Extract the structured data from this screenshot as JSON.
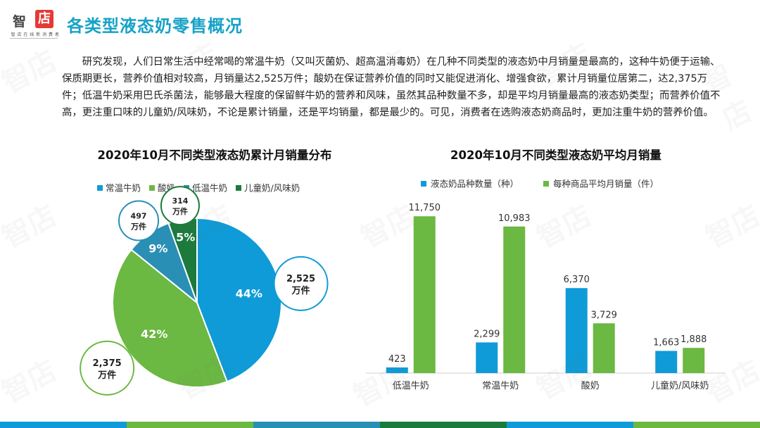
{
  "logo": {
    "char1": "智",
    "char2": "店",
    "tagline": "智 店 在 线 新 消 费 者"
  },
  "page_title": "各类型液态奶零售概况",
  "intro": "研究发现，人们日常生活中经常喝的常温牛奶（又叫灭菌奶、超高温消毒奶）在几种不同类型的液态奶中月销量是最高的，这种牛奶便于运输、保质期更长，营养价值相对较高，月销量达2,525万件；酸奶在保证营养价值的同时又能促进消化、增强食欲，累计月销量位居第二，达2,375万件；低温牛奶采用巴氏杀菌法，能够最大程度的保留鲜牛奶的营养和风味，虽然其品种数量不多，却是平均月销量最高的液态奶类型；而营养价值不高，更注重口味的儿童奶/风味奶，不论是累计销量，还是平均销量，都是最少的。可见，消费者在选购液态奶商品时，更加注重牛奶的营养价值。",
  "watermark": "智店",
  "colors": {
    "title": "#17a2c7",
    "blue": "#0f9bd7",
    "green": "#6bb842",
    "teal": "#2a8fb5",
    "dark_green": "#1b7a3c",
    "bottom_bar": [
      "#0f9bd7",
      "#6bb842",
      "#2a8fb5",
      "#1b7a3c",
      "#0f9bd7",
      "#6bb842"
    ]
  },
  "chart_data": [
    {
      "type": "pie",
      "title": "2020年10月不同类型液态奶累计月销量分布",
      "legend_position": "top",
      "categories": [
        "常温牛奶",
        "酸奶",
        "低温牛奶",
        "儿童奶/风味奶"
      ],
      "values": [
        2525,
        2375,
        497,
        314
      ],
      "percent_labels": [
        "44%",
        "42%",
        "9%",
        "5%"
      ],
      "callouts": [
        [
          "2,525",
          "万件"
        ],
        [
          "2,375",
          "万件"
        ],
        [
          "497",
          "万件"
        ],
        [
          "314",
          "万件"
        ]
      ],
      "colors": [
        "#0f9bd7",
        "#6bb842",
        "#2a8fb5",
        "#1b7a3c"
      ]
    },
    {
      "type": "bar",
      "title": "2020年10月不同类型液态奶平均月销量",
      "legend_position": "top",
      "grid": false,
      "categories": [
        "低温牛奶",
        "常温牛奶",
        "酸奶",
        "儿童奶/风味奶"
      ],
      "ylim": [
        0,
        12500
      ],
      "series": [
        {
          "name": "液态奶品种数量（种）",
          "values": [
            423,
            2299,
            6370,
            1663
          ],
          "labels": [
            "423",
            "2,299",
            "6,370",
            "1,663"
          ],
          "color": "#0f9bd7"
        },
        {
          "name": "每种商品平均月销量（件）",
          "values": [
            11750,
            10983,
            3729,
            1888
          ],
          "labels": [
            "11,750",
            "10,983",
            "3,729",
            "1,888"
          ],
          "color": "#6bb842"
        }
      ]
    }
  ]
}
